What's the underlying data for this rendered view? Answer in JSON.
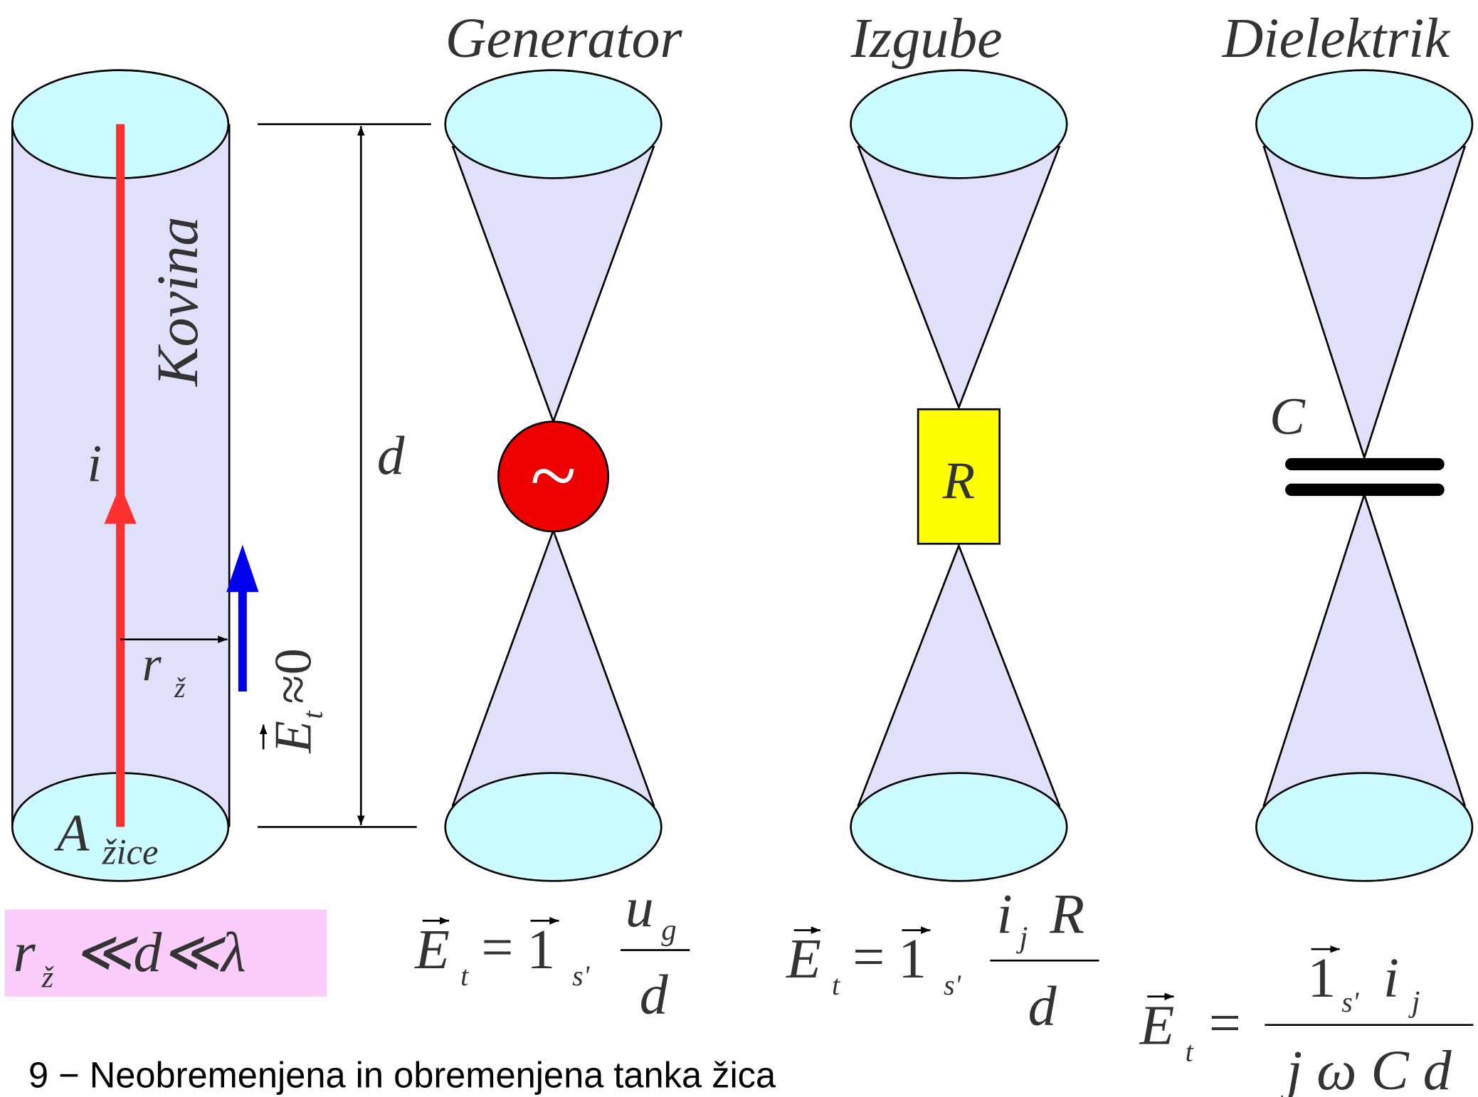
{
  "wire": {
    "material": "Kovina",
    "current": "i",
    "radius": "r",
    "radius_sub": "ž",
    "area": "A",
    "area_sub": "žice",
    "field": "E",
    "field_sub": "t",
    "field_rel": "≈0",
    "condition": {
      "r": "r",
      "sub": "ž",
      "rest": "≪d≪λ"
    }
  },
  "dimension": "d",
  "loads": [
    {
      "title": "Generator",
      "symbol": "~",
      "formula": {
        "lhs": "E",
        "lhs_sub": "t",
        "eq": "=",
        "unit": "1",
        "unit_sub": "s'",
        "num": "u",
        "num_sub": "g",
        "den": "d"
      }
    },
    {
      "title": "Izgube",
      "symbol": "R",
      "formula": {
        "lhs": "E",
        "lhs_sub": "t",
        "eq": "=",
        "unit": "1",
        "unit_sub": "s'",
        "num": "i",
        "num_sub": "j",
        "num_tail": "R",
        "den": "d"
      }
    },
    {
      "title": "Dielektrik",
      "symbol": "C",
      "formula": {
        "lhs": "E",
        "lhs_sub": "t",
        "eq": "=",
        "unit": "1",
        "unit_sub": "s'",
        "num": "i",
        "num_sub": "j",
        "den": "j ω C d"
      }
    }
  ],
  "caption": "9 − Neobremenjena in obremenjena tanka žica"
}
